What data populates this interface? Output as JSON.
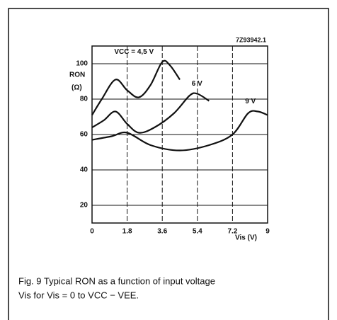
{
  "chart_data": {
    "type": "line",
    "code": "7Z93942.1",
    "ylabel": "RON",
    "yunit": "(Ω)",
    "xlabel": "Vis (V)",
    "caption": [
      "Fig. 9 Typical RON as a function of input voltage",
      "Vis for Vis = 0 to VCC − VEE."
    ],
    "xlim": [
      0,
      9
    ],
    "xticks": [
      0,
      1.8,
      3.6,
      5.4,
      7.2,
      9
    ],
    "ylim": [
      10,
      110
    ],
    "yticks": [
      20,
      40,
      60,
      80,
      100
    ],
    "grid": true,
    "series": [
      {
        "name": "VCC = 4,5 V",
        "color": "#111",
        "x": [
          0,
          0.5,
          1.2,
          1.8,
          2.4,
          3.0,
          3.6,
          4.0,
          4.5
        ],
        "values": [
          71,
          80,
          91,
          85,
          81,
          88,
          101,
          99,
          91
        ]
      },
      {
        "name": "6 V",
        "color": "#111",
        "x": [
          0,
          0.6,
          1.2,
          1.8,
          2.4,
          3.2,
          4.2,
          5.0,
          5.4,
          6.0
        ],
        "values": [
          64,
          68,
          73,
          66,
          61,
          64,
          72,
          82,
          83,
          79
        ]
      },
      {
        "name": "9 V",
        "color": "#111",
        "x": [
          0,
          1.0,
          1.8,
          3.0,
          4.5,
          6.0,
          7.2,
          8.0,
          8.5,
          9
        ],
        "values": [
          57,
          59,
          61,
          54,
          51,
          54,
          60,
          72,
          73,
          71
        ]
      }
    ]
  }
}
